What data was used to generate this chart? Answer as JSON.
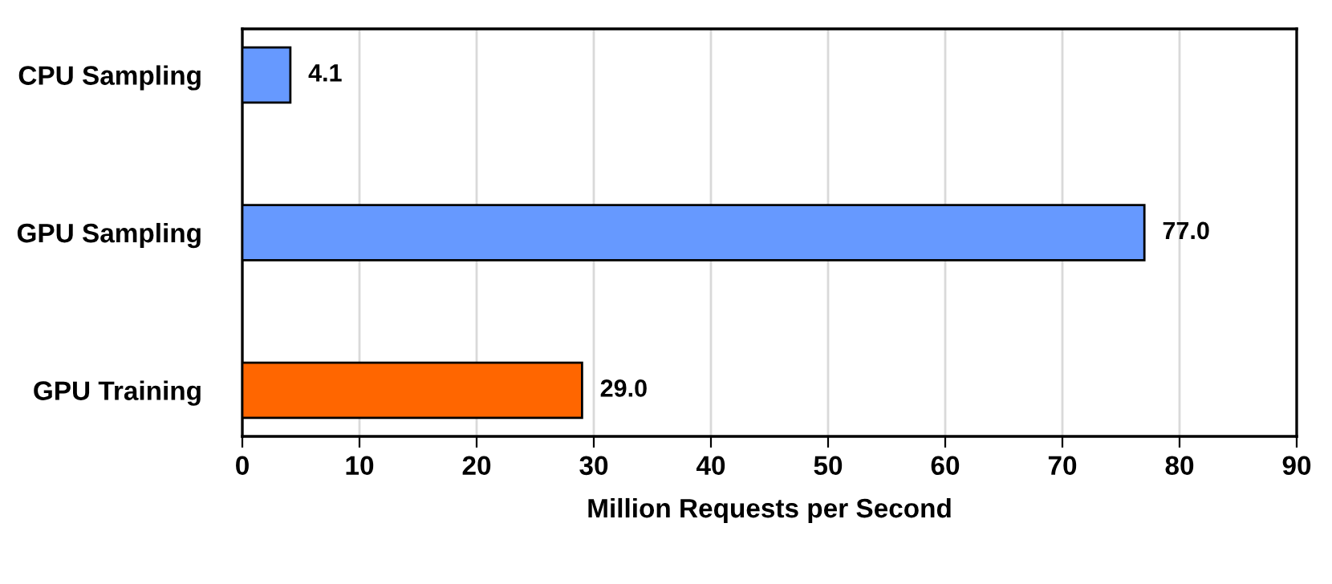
{
  "chart_data": {
    "type": "bar",
    "orientation": "horizontal",
    "xlabel": "Million Requests per Second",
    "categories": [
      "CPU Sampling",
      "GPU Sampling",
      "GPU Training"
    ],
    "values": [
      4.1,
      77.0,
      29.0
    ],
    "colors": [
      "#6699ff",
      "#6699ff",
      "#ff6600"
    ],
    "value_labels": [
      "4.1",
      "77.0",
      "29.0"
    ],
    "xlim": [
      0,
      90
    ],
    "xticks": [
      0,
      10,
      20,
      30,
      40,
      50,
      60,
      70,
      80,
      90
    ],
    "grid": "x"
  }
}
